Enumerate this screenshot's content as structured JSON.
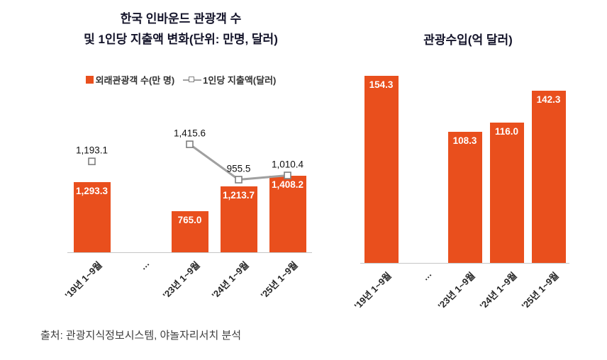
{
  "source": "출처: 관광지식정보시스템, 야놀자리서치 분석",
  "colors": {
    "bar": "#E94F1D",
    "line": "#A0A0A0",
    "marker_border": "#7F7F7F",
    "axis": "#C6C6C6",
    "title_text": "#14142A",
    "bar_value_text": "#FFFFFF"
  },
  "chart_data": [
    {
      "type": "bar",
      "title_lines": [
        "한국 인바운드 관광객 수",
        "및 1인당 지출액 변화(단위: 만명, 달러)"
      ],
      "categories": [
        "'19년 1~9월",
        "…",
        "'23년 1~9월",
        "'24년 1~9월",
        "'25년 1~9월"
      ],
      "legend_position": "top",
      "grid": false,
      "series": [
        {
          "name": "외래관광객 수(만 명)",
          "type": "bar",
          "values": [
            1293.3,
            null,
            765.0,
            1213.7,
            1408.2
          ],
          "labels": [
            "1,293.3",
            null,
            "765.0",
            "1,213.7",
            "1,408.2"
          ],
          "ylim": [
            0,
            3400
          ]
        },
        {
          "name": "1인당 지출액(달러)",
          "type": "line",
          "values": [
            1193.1,
            null,
            1415.6,
            955.5,
            1010.4
          ],
          "labels": [
            "1,193.1",
            null,
            "1,415.6",
            "955.5",
            "1,010.4"
          ],
          "ylim": [
            0,
            2400
          ]
        }
      ]
    },
    {
      "type": "bar",
      "title": "관광수입(억 달러)",
      "categories": [
        "'19년 1~9월",
        "…",
        "'23년 1~9월",
        "'24년 1~9월",
        "'25년 1~9월"
      ],
      "values": [
        154.3,
        null,
        108.3,
        116.0,
        142.3
      ],
      "labels": [
        "154.3",
        null,
        "108.3",
        "116.0",
        "142.3"
      ],
      "ylim": [
        0,
        155
      ],
      "grid": false,
      "legend_position": "none"
    }
  ]
}
